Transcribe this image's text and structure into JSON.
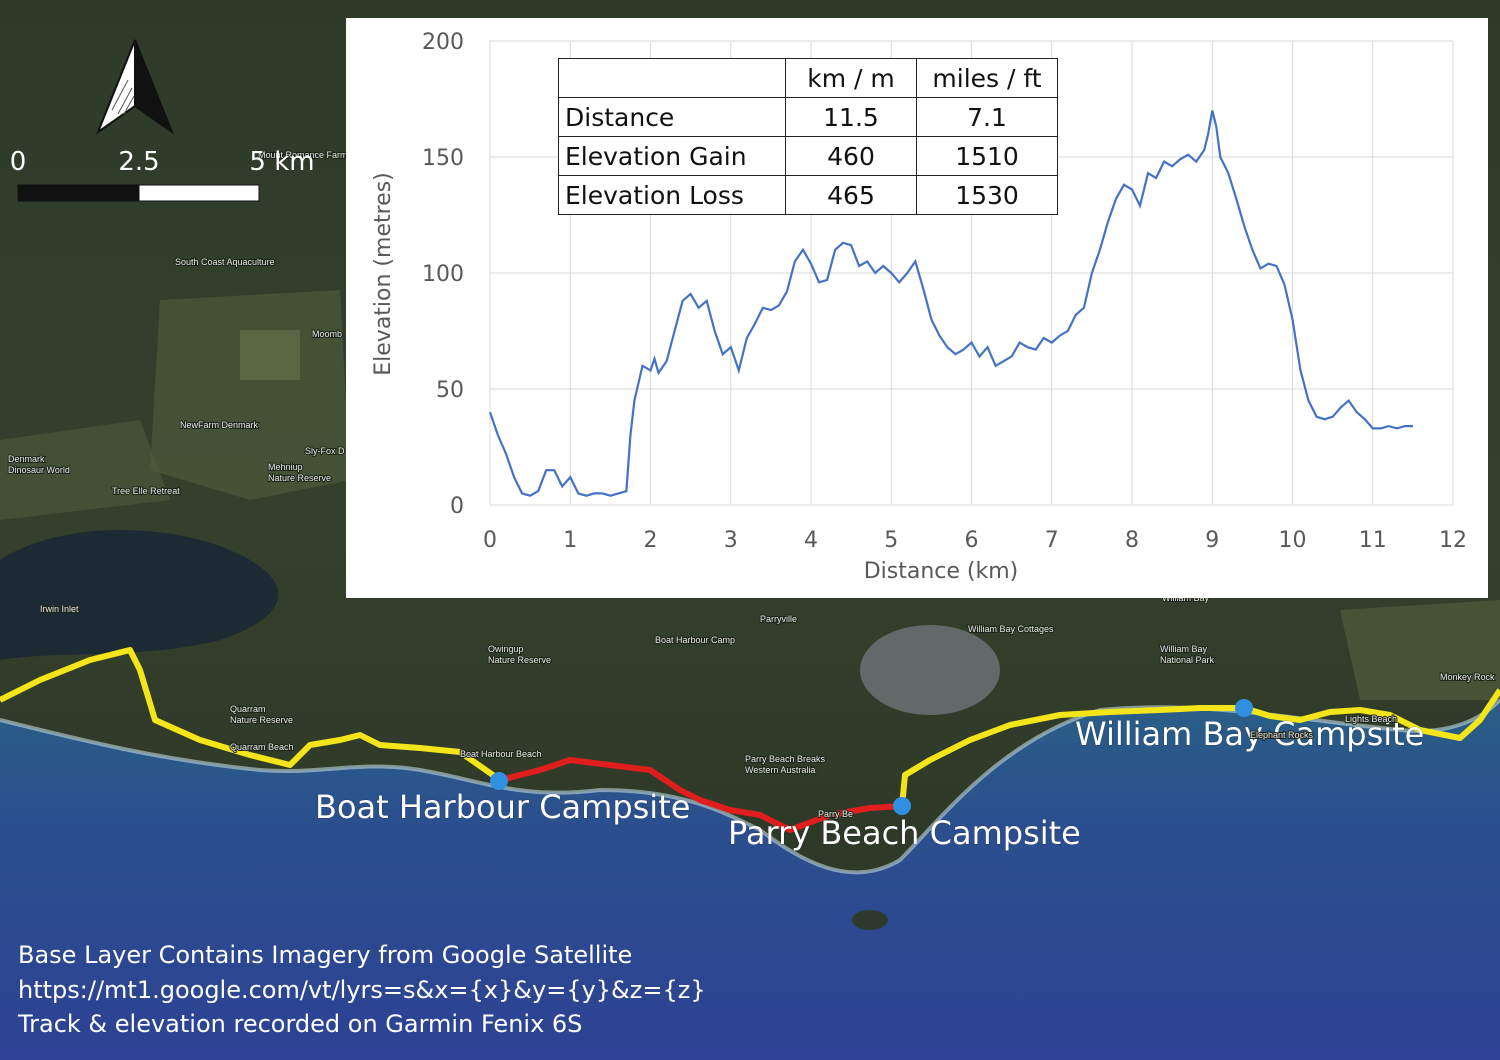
{
  "map": {
    "place_labels": [
      {
        "id": "south-coast-aquaculture",
        "text": "South Coast Aquaculture"
      },
      {
        "id": "mount-romance-farm",
        "text": "Mount Romance Farm"
      },
      {
        "id": "moombaki",
        "text": "Moomb"
      },
      {
        "id": "newfarm-denmark",
        "text": "NewFarm Denmark"
      },
      {
        "id": "denmark-dinosaur-world",
        "text": "Denmark\nDinosaur World"
      },
      {
        "id": "tree-elle-retreat",
        "text": "Tree Elle Retreat"
      },
      {
        "id": "sly-fox",
        "text": "Sly-Fox D"
      },
      {
        "id": "mehniup-nature-reserve",
        "text": "Mehniup\nNature Reserve"
      },
      {
        "id": "irwin-inlet",
        "text": "Irwin Inlet"
      },
      {
        "id": "owingup-nature-reserve",
        "text": "Owingup\nNature Reserve"
      },
      {
        "id": "boat-harbour-camp",
        "text": "Boat Harbour Camp"
      },
      {
        "id": "parryville",
        "text": "Parryville"
      },
      {
        "id": "william-bay-cottages",
        "text": "William Bay Cottages"
      },
      {
        "id": "william-bay-national-park",
        "text": "William Bay\nNational Park"
      },
      {
        "id": "monkey-rock",
        "text": "Monkey Rock"
      },
      {
        "id": "quarram-nature-reserve",
        "text": "Quarram\nNature Reserve"
      },
      {
        "id": "quarram-beach",
        "text": "Quarram Beach"
      },
      {
        "id": "boat-harbour",
        "text": "Boat Harbour Beach"
      },
      {
        "id": "parry-beach-breaks",
        "text": "Parry Beach Breaks\nWestern Australia"
      },
      {
        "id": "parry-beach",
        "text": "Parry Be"
      },
      {
        "id": "william-bay-road",
        "text": "William Bay"
      },
      {
        "id": "lights-beach",
        "text": "Lights Beach"
      },
      {
        "id": "elephant-rocks",
        "text": "Elephant Rocks"
      }
    ],
    "campsites": [
      {
        "id": "boat-harbour-campsite",
        "label": "Boat Harbour Campsite"
      },
      {
        "id": "parry-beach-campsite",
        "label": "Parry Beach Campsite"
      },
      {
        "id": "william-bay-campsite",
        "label": "William Bay Campsite"
      }
    ],
    "track_colors": {
      "highlighted": "#e01e1e",
      "rest": "#f4e51b"
    },
    "campsite_color": "#2f8fe0",
    "north_arrow_icon": "north-arrow-icon"
  },
  "scale_bar": {
    "labels": [
      "0",
      "2.5",
      "5 km"
    ]
  },
  "chart_data": {
    "type": "line",
    "xlabel": "Distance (km)",
    "ylabel": "Elevation (metres)",
    "xlim": [
      0,
      12
    ],
    "ylim": [
      0,
      200
    ],
    "x_ticks": [
      0,
      1,
      2,
      3,
      4,
      5,
      6,
      7,
      8,
      9,
      10,
      11,
      12
    ],
    "y_ticks": [
      0,
      50,
      100,
      150,
      200
    ],
    "grid": true,
    "line_color": "#4472c4",
    "series": [
      {
        "x": [
          0,
          0.1,
          0.2,
          0.3,
          0.4,
          0.5,
          0.6,
          0.7,
          0.8,
          0.9,
          1.0,
          1.1,
          1.2,
          1.3,
          1.4,
          1.5,
          1.6,
          1.7,
          1.75,
          1.8,
          1.9,
          2.0,
          2.05,
          2.1,
          2.2,
          2.3,
          2.4,
          2.5,
          2.6,
          2.7,
          2.8,
          2.9,
          3.0,
          3.1,
          3.2,
          3.3,
          3.4,
          3.5,
          3.6,
          3.7,
          3.8,
          3.9,
          4.0,
          4.1,
          4.2,
          4.3,
          4.4,
          4.5,
          4.6,
          4.7,
          4.8,
          4.9,
          5.0,
          5.1,
          5.2,
          5.3,
          5.4,
          5.5,
          5.6,
          5.7,
          5.8,
          5.9,
          6.0,
          6.1,
          6.2,
          6.3,
          6.4,
          6.5,
          6.6,
          6.7,
          6.8,
          6.9,
          7.0,
          7.1,
          7.2,
          7.3,
          7.4,
          7.5,
          7.6,
          7.7,
          7.8,
          7.9,
          8.0,
          8.1,
          8.2,
          8.3,
          8.4,
          8.5,
          8.6,
          8.7,
          8.8,
          8.9,
          8.95,
          9.0,
          9.05,
          9.1,
          9.2,
          9.3,
          9.4,
          9.5,
          9.6,
          9.7,
          9.8,
          9.9,
          10.0,
          10.1,
          10.2,
          10.3,
          10.4,
          10.5,
          10.6,
          10.7,
          10.8,
          10.9,
          11.0,
          11.1,
          11.2,
          11.3,
          11.4,
          11.5
        ],
        "y": [
          40,
          30,
          22,
          12,
          5,
          4,
          6,
          15,
          15,
          8,
          12,
          5,
          4,
          5,
          5,
          4,
          5,
          6,
          30,
          45,
          60,
          58,
          63,
          57,
          62,
          75,
          88,
          91,
          85,
          88,
          75,
          65,
          68,
          58,
          72,
          78,
          85,
          84,
          86,
          92,
          105,
          110,
          104,
          96,
          97,
          110,
          113,
          112,
          103,
          105,
          100,
          103,
          100,
          96,
          100,
          105,
          93,
          80,
          73,
          68,
          65,
          67,
          70,
          64,
          68,
          60,
          62,
          64,
          70,
          68,
          67,
          72,
          70,
          73,
          75,
          82,
          85,
          100,
          110,
          122,
          132,
          138,
          136,
          129,
          143,
          141,
          148,
          146,
          149,
          151,
          148,
          153,
          160,
          170,
          163,
          150,
          143,
          132,
          120,
          110,
          102,
          104,
          103,
          95,
          80,
          58,
          45,
          38,
          37,
          38,
          42,
          45,
          40,
          37,
          33,
          33,
          34,
          33,
          34,
          34
        ]
      }
    ]
  },
  "stats_table": {
    "headers": [
      "",
      "km / m",
      "miles / ft"
    ],
    "rows": [
      {
        "label": "Distance",
        "metric": "11.5",
        "imperial": "7.1"
      },
      {
        "label": "Elevation Gain",
        "metric": "460",
        "imperial": "1510"
      },
      {
        "label": "Elevation Loss",
        "metric": "465",
        "imperial": "1530"
      }
    ]
  },
  "credits": {
    "line1": "Base Layer Contains Imagery from Google Satellite",
    "line2": "https://mt1.google.com/vt/lyrs=s&x={x}&y={y}&z={z}",
    "line3": "Track & elevation recorded on Garmin Fenix 6S"
  }
}
